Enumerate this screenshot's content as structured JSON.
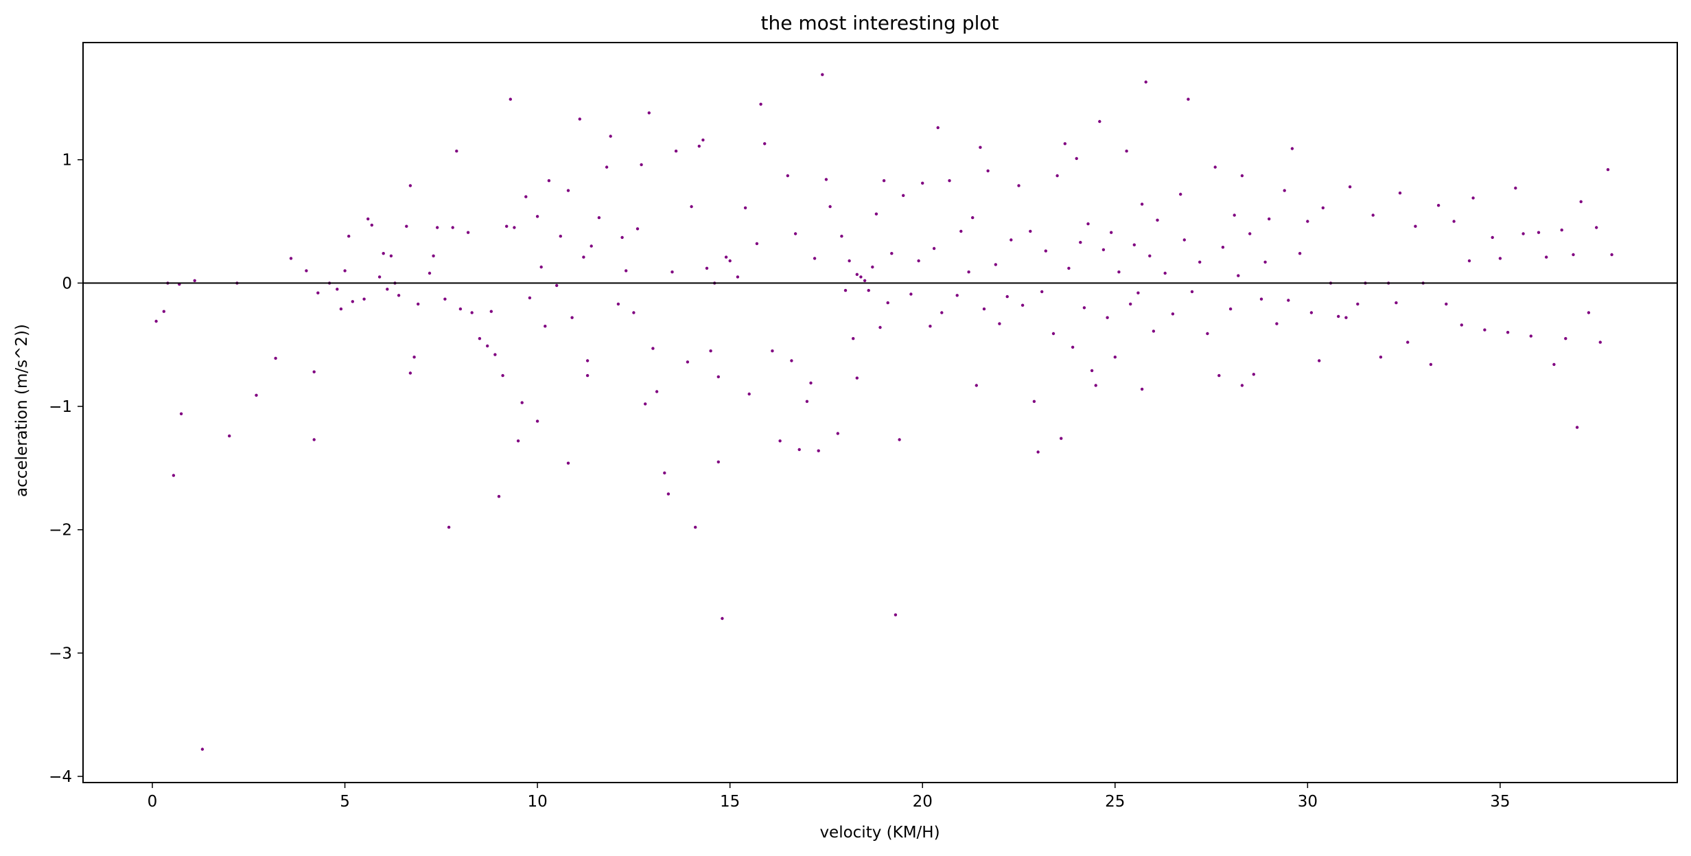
{
  "chart_data": {
    "type": "scatter",
    "title": "the most interesting plot",
    "xlabel": "velocity (KM/H)",
    "ylabel": "acceleration (m/s^2))",
    "xlim": [
      -1.8,
      39.6
    ],
    "ylim": [
      -4.05,
      1.95
    ],
    "x_ticks": [
      0,
      5,
      10,
      15,
      20,
      25,
      30,
      35
    ],
    "y_ticks": [
      -4,
      -3,
      -2,
      -1,
      0,
      1
    ],
    "x_tick_labels": [
      "0",
      "5",
      "10",
      "15",
      "20",
      "25",
      "30",
      "35"
    ],
    "y_tick_labels": [
      "−4",
      "−3",
      "−2",
      "−1",
      "0",
      "1"
    ],
    "grid": false,
    "reference_line_y": 0,
    "marker_color": "#800080",
    "reference_line_color": "#000000",
    "points": [
      [
        0.1,
        -0.31
      ],
      [
        0.3,
        -0.23
      ],
      [
        0.4,
        0.0
      ],
      [
        0.55,
        -1.56
      ],
      [
        0.7,
        -0.01
      ],
      [
        0.75,
        -1.06
      ],
      [
        1.1,
        0.02
      ],
      [
        1.3,
        -3.78
      ],
      [
        2.0,
        -1.24
      ],
      [
        2.2,
        0.0
      ],
      [
        2.7,
        -0.91
      ],
      [
        3.2,
        -0.61
      ],
      [
        3.6,
        0.2
      ],
      [
        4.0,
        0.1
      ],
      [
        4.2,
        -0.72
      ],
      [
        4.2,
        -1.27
      ],
      [
        4.3,
        -0.08
      ],
      [
        4.6,
        0.0
      ],
      [
        4.8,
        -0.05
      ],
      [
        4.9,
        -0.21
      ],
      [
        5.0,
        0.1
      ],
      [
        5.1,
        0.38
      ],
      [
        5.2,
        -0.15
      ],
      [
        5.5,
        -0.13
      ],
      [
        5.6,
        0.52
      ],
      [
        5.7,
        0.47
      ],
      [
        5.9,
        0.05
      ],
      [
        6.0,
        0.24
      ],
      [
        6.1,
        -0.05
      ],
      [
        6.2,
        0.22
      ],
      [
        6.3,
        0.0
      ],
      [
        6.4,
        -0.1
      ],
      [
        6.6,
        0.46
      ],
      [
        6.7,
        -0.73
      ],
      [
        6.7,
        0.79
      ],
      [
        6.8,
        -0.6
      ],
      [
        6.9,
        -0.17
      ],
      [
        7.2,
        0.08
      ],
      [
        7.3,
        0.22
      ],
      [
        7.4,
        0.45
      ],
      [
        7.6,
        -0.13
      ],
      [
        7.7,
        -1.98
      ],
      [
        7.8,
        0.45
      ],
      [
        7.9,
        1.07
      ],
      [
        8.0,
        -0.21
      ],
      [
        8.2,
        0.41
      ],
      [
        8.3,
        -0.24
      ],
      [
        8.5,
        -0.45
      ],
      [
        8.7,
        -0.51
      ],
      [
        8.8,
        -0.23
      ],
      [
        8.9,
        -0.58
      ],
      [
        9.0,
        -1.73
      ],
      [
        9.1,
        -0.75
      ],
      [
        9.2,
        0.46
      ],
      [
        9.3,
        1.49
      ],
      [
        9.4,
        0.45
      ],
      [
        9.5,
        -1.28
      ],
      [
        9.6,
        -0.97
      ],
      [
        9.7,
        0.7
      ],
      [
        9.8,
        -0.12
      ],
      [
        10.0,
        0.54
      ],
      [
        10.0,
        -1.12
      ],
      [
        10.1,
        0.13
      ],
      [
        10.2,
        -0.35
      ],
      [
        10.3,
        0.83
      ],
      [
        10.5,
        -0.02
      ],
      [
        10.6,
        0.38
      ],
      [
        10.8,
        0.75
      ],
      [
        10.8,
        -1.46
      ],
      [
        10.9,
        -0.28
      ],
      [
        11.1,
        1.33
      ],
      [
        11.2,
        0.21
      ],
      [
        11.3,
        -0.63
      ],
      [
        11.3,
        -0.75
      ],
      [
        11.4,
        0.3
      ],
      [
        11.6,
        0.53
      ],
      [
        11.8,
        0.94
      ],
      [
        11.9,
        1.19
      ],
      [
        12.1,
        -0.17
      ],
      [
        12.2,
        0.37
      ],
      [
        12.3,
        0.1
      ],
      [
        12.5,
        -0.24
      ],
      [
        12.6,
        0.44
      ],
      [
        12.7,
        0.96
      ],
      [
        12.8,
        -0.98
      ],
      [
        12.9,
        1.38
      ],
      [
        13.0,
        -0.53
      ],
      [
        13.1,
        -0.88
      ],
      [
        13.3,
        -1.54
      ],
      [
        13.4,
        -1.71
      ],
      [
        13.5,
        0.09
      ],
      [
        13.6,
        1.07
      ],
      [
        13.9,
        -0.64
      ],
      [
        14.0,
        0.62
      ],
      [
        14.1,
        -1.98
      ],
      [
        14.2,
        1.11
      ],
      [
        14.3,
        1.16
      ],
      [
        14.4,
        0.12
      ],
      [
        14.5,
        -0.55
      ],
      [
        14.6,
        0.0
      ],
      [
        14.7,
        -0.76
      ],
      [
        14.7,
        -1.45
      ],
      [
        14.8,
        -2.72
      ],
      [
        14.9,
        0.21
      ],
      [
        15.0,
        0.18
      ],
      [
        15.2,
        0.05
      ],
      [
        15.4,
        0.61
      ],
      [
        15.5,
        -0.9
      ],
      [
        15.7,
        0.32
      ],
      [
        15.8,
        1.45
      ],
      [
        15.9,
        1.13
      ],
      [
        16.1,
        -0.55
      ],
      [
        16.3,
        -1.28
      ],
      [
        16.5,
        0.87
      ],
      [
        16.6,
        -0.63
      ],
      [
        16.7,
        0.4
      ],
      [
        16.8,
        -1.35
      ],
      [
        17.0,
        -0.96
      ],
      [
        17.1,
        -0.81
      ],
      [
        17.2,
        0.2
      ],
      [
        17.3,
        -1.36
      ],
      [
        17.4,
        1.69
      ],
      [
        17.5,
        0.84
      ],
      [
        17.6,
        0.62
      ],
      [
        17.8,
        -1.22
      ],
      [
        17.9,
        0.38
      ],
      [
        18.0,
        -0.06
      ],
      [
        18.1,
        0.18
      ],
      [
        18.2,
        -0.45
      ],
      [
        18.3,
        0.07
      ],
      [
        18.3,
        -0.77
      ],
      [
        18.4,
        0.05
      ],
      [
        18.5,
        0.02
      ],
      [
        18.6,
        -0.06
      ],
      [
        18.7,
        0.13
      ],
      [
        18.8,
        0.56
      ],
      [
        18.9,
        -0.36
      ],
      [
        19.0,
        0.83
      ],
      [
        19.1,
        -0.16
      ],
      [
        19.2,
        0.24
      ],
      [
        19.3,
        -2.69
      ],
      [
        19.4,
        -1.27
      ],
      [
        19.5,
        0.71
      ],
      [
        19.7,
        -0.09
      ],
      [
        19.9,
        0.18
      ],
      [
        20.0,
        0.81
      ],
      [
        20.2,
        -0.35
      ],
      [
        20.3,
        0.28
      ],
      [
        20.4,
        1.26
      ],
      [
        20.5,
        -0.24
      ],
      [
        20.7,
        0.83
      ],
      [
        20.9,
        -0.1
      ],
      [
        21.0,
        0.42
      ],
      [
        21.2,
        0.09
      ],
      [
        21.3,
        0.53
      ],
      [
        21.4,
        -0.83
      ],
      [
        21.5,
        1.1
      ],
      [
        21.6,
        -0.21
      ],
      [
        21.7,
        0.91
      ],
      [
        21.9,
        0.15
      ],
      [
        22.0,
        -0.33
      ],
      [
        22.2,
        -0.11
      ],
      [
        22.3,
        0.35
      ],
      [
        22.5,
        0.79
      ],
      [
        22.6,
        -0.18
      ],
      [
        22.8,
        0.42
      ],
      [
        22.9,
        -0.96
      ],
      [
        23.0,
        -1.37
      ],
      [
        23.1,
        -0.07
      ],
      [
        23.2,
        0.26
      ],
      [
        23.4,
        -0.41
      ],
      [
        23.5,
        0.87
      ],
      [
        23.6,
        -1.26
      ],
      [
        23.7,
        1.13
      ],
      [
        23.8,
        0.12
      ],
      [
        23.9,
        -0.52
      ],
      [
        24.0,
        1.01
      ],
      [
        24.1,
        0.33
      ],
      [
        24.2,
        -0.2
      ],
      [
        24.3,
        0.48
      ],
      [
        24.4,
        -0.71
      ],
      [
        24.5,
        -0.83
      ],
      [
        24.6,
        1.31
      ],
      [
        24.7,
        0.27
      ],
      [
        24.8,
        -0.28
      ],
      [
        24.9,
        0.41
      ],
      [
        25.0,
        -0.6
      ],
      [
        25.1,
        0.09
      ],
      [
        25.3,
        1.07
      ],
      [
        25.4,
        -0.17
      ],
      [
        25.5,
        0.31
      ],
      [
        25.6,
        -0.08
      ],
      [
        25.7,
        0.64
      ],
      [
        25.7,
        -0.86
      ],
      [
        25.8,
        1.63
      ],
      [
        25.9,
        0.22
      ],
      [
        26.0,
        -0.39
      ],
      [
        26.1,
        0.51
      ],
      [
        26.3,
        0.08
      ],
      [
        26.5,
        -0.25
      ],
      [
        26.7,
        0.72
      ],
      [
        26.8,
        0.35
      ],
      [
        26.9,
        1.49
      ],
      [
        27.0,
        -0.07
      ],
      [
        27.2,
        0.17
      ],
      [
        27.4,
        -0.41
      ],
      [
        27.6,
        0.94
      ],
      [
        27.7,
        -0.75
      ],
      [
        27.8,
        0.29
      ],
      [
        28.0,
        -0.21
      ],
      [
        28.1,
        0.55
      ],
      [
        28.2,
        0.06
      ],
      [
        28.3,
        0.87
      ],
      [
        28.3,
        -0.83
      ],
      [
        28.5,
        0.4
      ],
      [
        28.6,
        -0.74
      ],
      [
        28.8,
        -0.13
      ],
      [
        28.9,
        0.17
      ],
      [
        29.0,
        0.52
      ],
      [
        29.2,
        -0.33
      ],
      [
        29.4,
        0.75
      ],
      [
        29.5,
        -0.14
      ],
      [
        29.6,
        1.09
      ],
      [
        29.8,
        0.24
      ],
      [
        30.0,
        0.5
      ],
      [
        30.1,
        -0.24
      ],
      [
        30.3,
        -0.63
      ],
      [
        30.4,
        0.61
      ],
      [
        30.6,
        0.0
      ],
      [
        30.8,
        -0.27
      ],
      [
        31.0,
        -0.28
      ],
      [
        31.1,
        0.78
      ],
      [
        31.3,
        -0.17
      ],
      [
        31.5,
        0.0
      ],
      [
        31.7,
        0.55
      ],
      [
        31.9,
        -0.6
      ],
      [
        32.1,
        0.0
      ],
      [
        32.3,
        -0.16
      ],
      [
        32.4,
        0.73
      ],
      [
        32.6,
        -0.48
      ],
      [
        32.8,
        0.46
      ],
      [
        33.0,
        0.0
      ],
      [
        33.2,
        -0.66
      ],
      [
        33.4,
        0.63
      ],
      [
        33.6,
        -0.17
      ],
      [
        33.8,
        0.5
      ],
      [
        34.0,
        -0.34
      ],
      [
        34.2,
        0.18
      ],
      [
        34.3,
        0.69
      ],
      [
        34.6,
        -0.38
      ],
      [
        34.8,
        0.37
      ],
      [
        35.0,
        0.2
      ],
      [
        35.2,
        -0.4
      ],
      [
        35.4,
        0.77
      ],
      [
        35.6,
        0.4
      ],
      [
        35.8,
        -0.43
      ],
      [
        36.0,
        0.41
      ],
      [
        36.2,
        0.21
      ],
      [
        36.4,
        -0.66
      ],
      [
        36.6,
        0.43
      ],
      [
        36.7,
        -0.45
      ],
      [
        36.9,
        0.23
      ],
      [
        37.0,
        -1.17
      ],
      [
        37.1,
        0.66
      ],
      [
        37.3,
        -0.24
      ],
      [
        37.5,
        0.45
      ],
      [
        37.6,
        -0.48
      ],
      [
        37.8,
        0.92
      ],
      [
        37.9,
        0.23
      ]
    ]
  }
}
